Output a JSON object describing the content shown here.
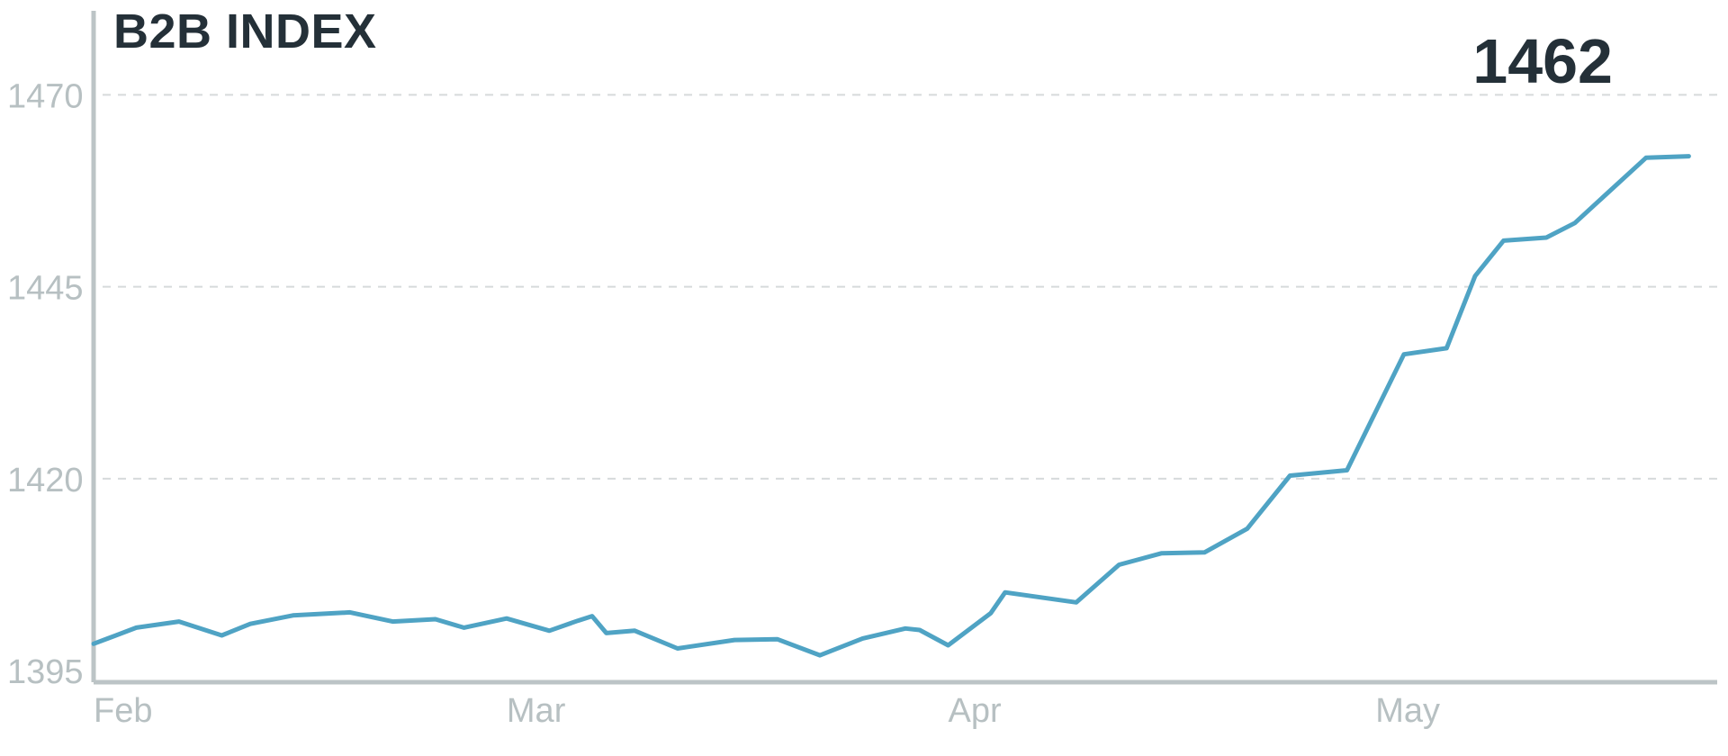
{
  "chart_data": {
    "type": "line",
    "title": "B2B INDEX",
    "latest_value_label": "1462",
    "xlabel": "",
    "ylabel": "",
    "ylim": [
      1393.5,
      1480
    ],
    "yticks": [
      1395,
      1420,
      1445,
      1470
    ],
    "ytick_labels": [
      "1395",
      "1420",
      "1445",
      "1470"
    ],
    "xlim": [
      "2021-01-31",
      "2021-05-25"
    ],
    "xticks": [
      "2021-01-31",
      "2021-03-01",
      "2021-04-01",
      "2021-05-01"
    ],
    "xtick_labels": [
      "Feb",
      "Mar",
      "Apr",
      "May"
    ],
    "grid": "horizontal dashed",
    "colors": {
      "line": "#4fa3c4",
      "axis": "#bcc4c6",
      "grid": "#d6dadb",
      "title": "#243038",
      "tick": "#b7c0c2"
    },
    "series": [
      {
        "x": [
          "2021-01-31",
          "2021-02-01",
          "2021-02-03",
          "2021-02-06",
          "2021-02-09",
          "2021-02-11",
          "2021-02-14",
          "2021-02-18",
          "2021-02-21",
          "2021-02-24",
          "2021-02-26",
          "2021-03-01",
          "2021-03-04",
          "2021-03-06",
          "2021-03-07",
          "2021-03-08",
          "2021-03-10",
          "2021-03-13",
          "2021-03-17",
          "2021-03-20",
          "2021-03-23",
          "2021-03-26",
          "2021-03-29",
          "2021-03-30",
          "2021-04-01",
          "2021-04 -04",
          "2021-04-05",
          "2021-04-10",
          "2021-04-13",
          "2021-04-16",
          "2021-04-19",
          "2021-04-22",
          "2021-04-25",
          "2021-04-29",
          "2021-05-03",
          "2021-05-06",
          "2021-05-08",
          "2021-05-10",
          "2021-05-13",
          "2021-05-15",
          "2021-05-20",
          "2021-05-23"
        ],
        "y": [
          1398.5,
          1399.2,
          1400.6,
          1401.4,
          1399.6,
          1401.1,
          1402.2,
          1402.6,
          1401.4,
          1401.7,
          1400.6,
          1401.8,
          1400.2,
          1401.5,
          1402.1,
          1399.9,
          1400.2,
          1397.9,
          1399.0,
          1399.1,
          1397.0,
          1399.2,
          1400.5,
          1400.3,
          1398.3,
          1402.5,
          1405.2,
          1403.9,
          1408.8,
          1410.3,
          1410.4,
          1413.5,
          1420.4,
          1421.1,
          1436.2,
          1437.0,
          1446.4,
          1451.0,
          1451.4,
          1453.3,
          1461.8,
          1462.0
        ]
      }
    ]
  }
}
